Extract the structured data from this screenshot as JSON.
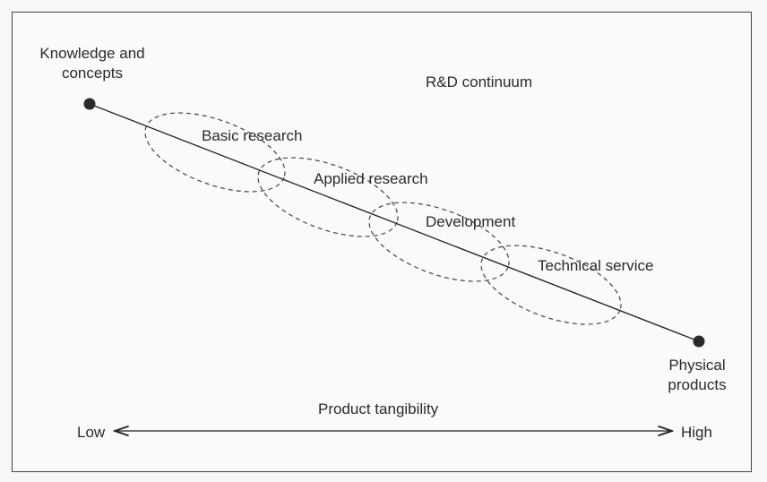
{
  "title": "R&D continuum",
  "endpoints": {
    "start_label_line1": "Knowledge and",
    "start_label_line2": "concepts",
    "end_label_line1": "Physical",
    "end_label_line2": "products"
  },
  "stages": [
    "Basic research",
    "Applied research",
    "Development",
    "Technical service"
  ],
  "axis": {
    "label": "Product tangibility",
    "low": "Low",
    "high": "High"
  },
  "colors": {
    "line": "#222222",
    "dash": "#444444",
    "dot": "#2a2a2a",
    "background": "#fafaf8"
  }
}
